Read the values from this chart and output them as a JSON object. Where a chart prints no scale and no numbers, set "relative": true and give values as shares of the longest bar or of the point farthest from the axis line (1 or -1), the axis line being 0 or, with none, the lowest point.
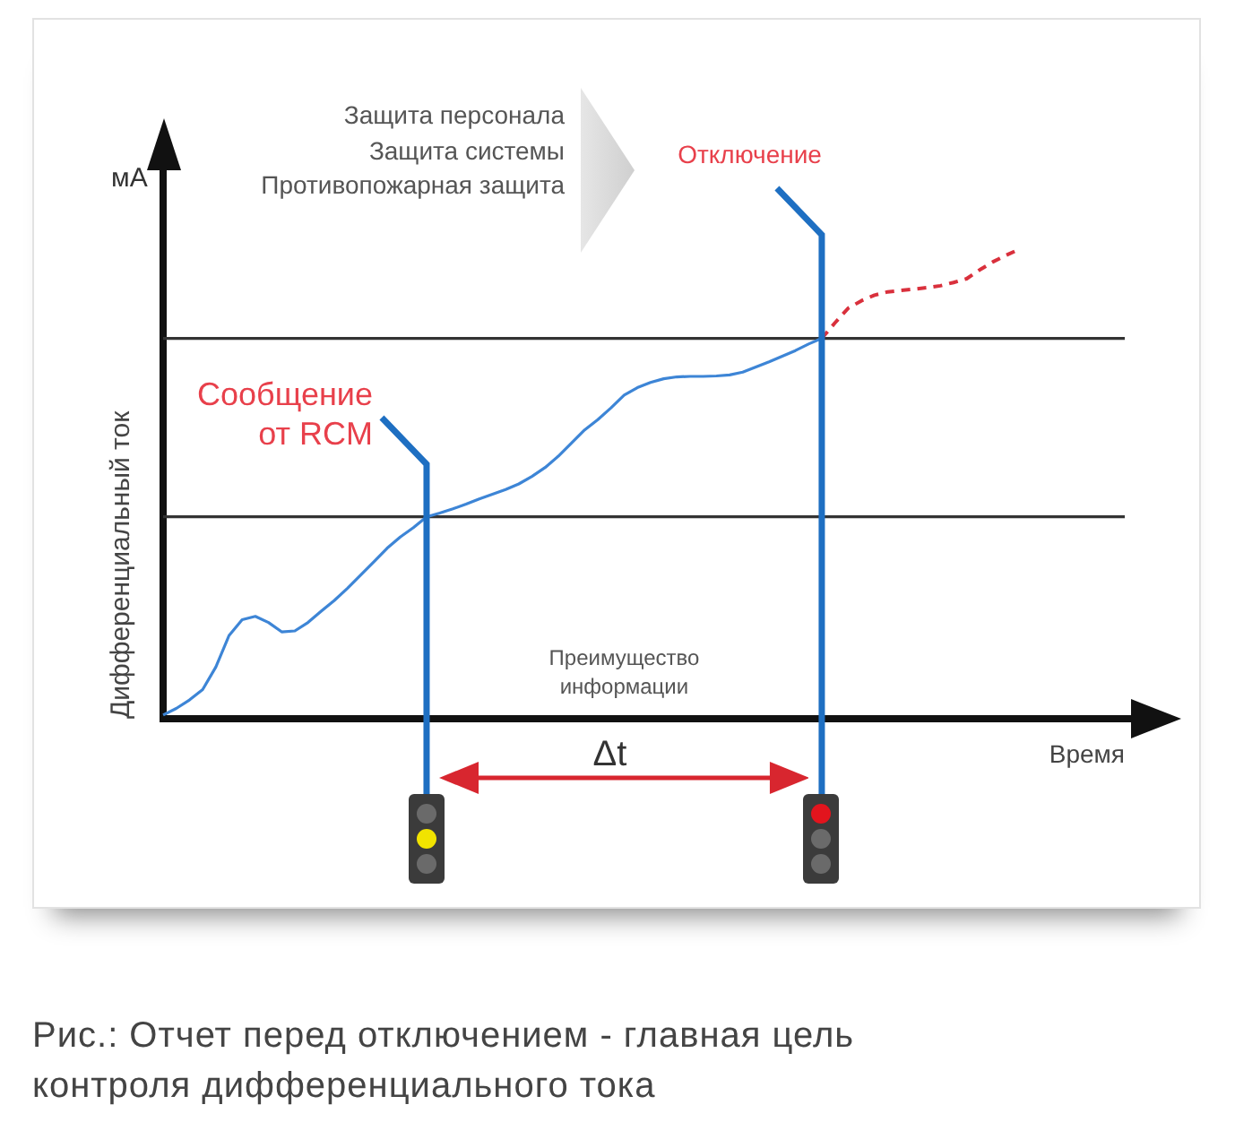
{
  "chart_data": {
    "type": "line",
    "relative": true,
    "xlabel": "Время",
    "ylabel": "Дифференциальный ток",
    "marker": "none",
    "categories": [
      null,
      null,
      null,
      null,
      null,
      null,
      null,
      null,
      null,
      null,
      null,
      null,
      null,
      null,
      null,
      null,
      null,
      null,
      null,
      null,
      null,
      null,
      null,
      null,
      null,
      null,
      null,
      null,
      null,
      null,
      null,
      null,
      null,
      null,
      null,
      null,
      null,
      null,
      null,
      null,
      null,
      null,
      null,
      null,
      null,
      null,
      null,
      null,
      null,
      null,
      null,
      null,
      null,
      null,
      null,
      null,
      null,
      null,
      null,
      null,
      null,
      null,
      null,
      null,
      null,
      null,
      null,
      null,
      null,
      null,
      null,
      null,
      null,
      null
    ],
    "series": [
      {
        "color": "#3d85d6",
        "line_style": "solid",
        "values": [
          0.008,
          0.022,
          0.04,
          0.062,
          0.11,
          0.177,
          0.211,
          0.218,
          0.205,
          0.185,
          0.187,
          0.205,
          0.229,
          0.252,
          0.278,
          0.306,
          0.334,
          0.363,
          0.387,
          0.407,
          0.43,
          0.438,
          0.447,
          0.457,
          0.468,
          0.478,
          0.488,
          0.5,
          0.516,
          0.535,
          0.559,
          0.587,
          0.615,
          0.637,
          0.662,
          0.689,
          0.705,
          0.716,
          0.724,
          0.728,
          0.729,
          0.729,
          0.73,
          0.732,
          0.738,
          0.749,
          0.76,
          0.772,
          0.784,
          0.798,
          0.81,
          null,
          null,
          null,
          null,
          null,
          null,
          null,
          null,
          null,
          null,
          null,
          null,
          null,
          null,
          null,
          null,
          null,
          null,
          null,
          null,
          null,
          null,
          null
        ]
      },
      {
        "color": "#d9303c",
        "line_style": "dashed",
        "values": [
          null,
          null,
          null,
          null,
          null,
          null,
          null,
          null,
          null,
          null,
          null,
          null,
          null,
          null,
          null,
          null,
          null,
          null,
          null,
          null,
          null,
          null,
          null,
          null,
          null,
          null,
          null,
          null,
          null,
          null,
          null,
          null,
          null,
          null,
          null,
          null,
          null,
          null,
          null,
          null,
          null,
          null,
          null,
          null,
          null,
          null,
          null,
          null,
          null,
          null,
          0.81,
          0.843,
          0.874,
          0.89,
          0.902,
          0.909,
          0.912,
          0.915,
          0.918,
          0.922,
          0.929,
          0.937,
          0.956,
          0.973,
          0.987,
          1,
          null,
          null,
          null,
          null,
          null,
          null,
          null,
          null
        ]
      }
    ],
    "ref_lines": [
      {
        "axis": "y",
        "value": 0.43,
        "color": "#333333"
      },
      {
        "axis": "y",
        "value": 0.81,
        "color": "#333333"
      }
    ],
    "annotations": [
      "мА",
      "Защита персонала",
      "Защита системы",
      "Противопожарная защита",
      "Отключение",
      "Сообщение от RCM",
      "Преимущество информации",
      "Δt",
      "Рис.: Отчет перед отключением - главная цель контроля дифференциального тока"
    ]
  }
}
